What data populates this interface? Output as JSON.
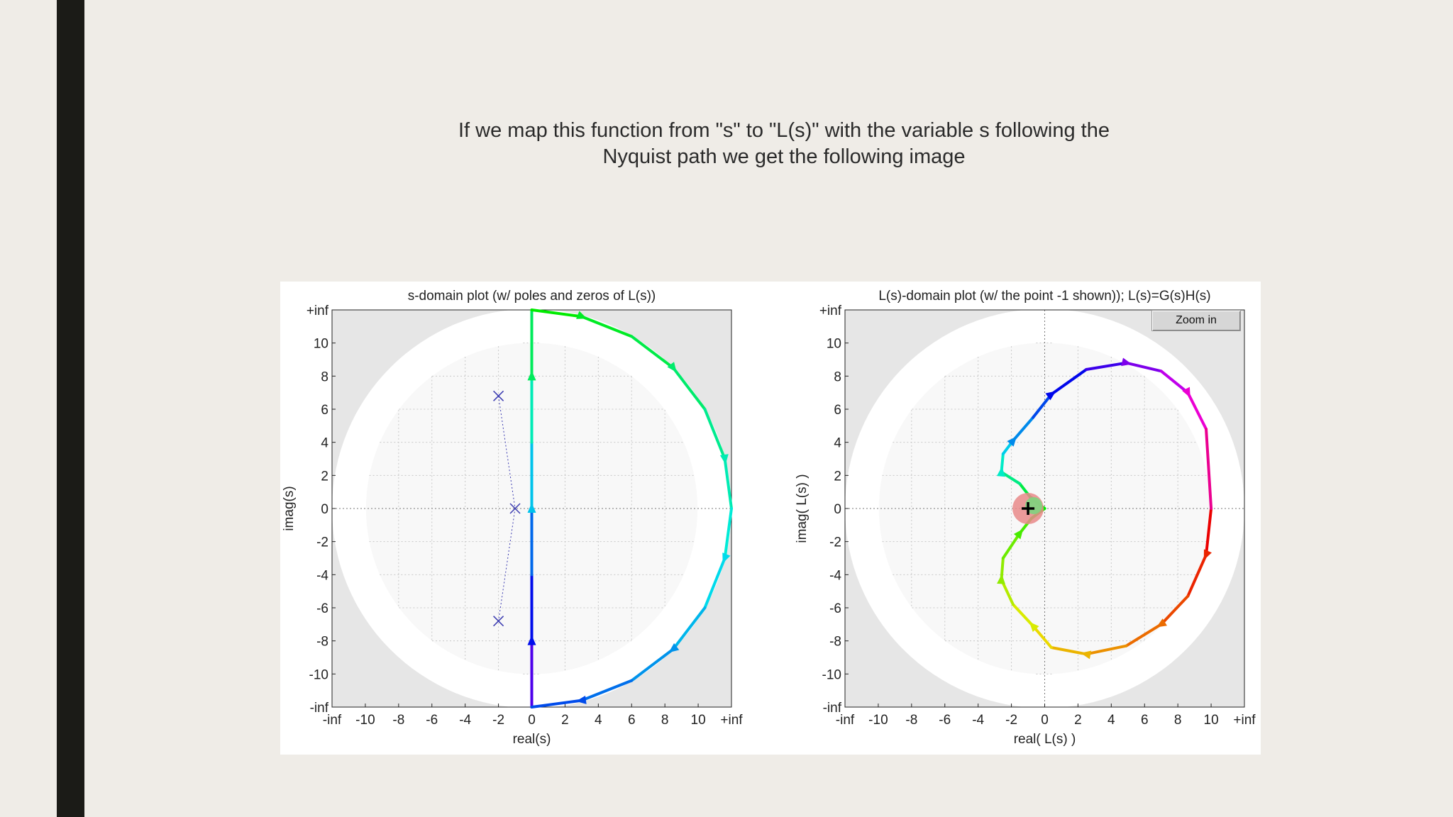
{
  "slide": {
    "caption_line1": "If we map this function from \"s\" to \"L(s)\" with the variable s following the",
    "caption_line2": "Nyquist path we get the following image",
    "bar_color": "#1b1b17",
    "background_color": "#efece7"
  },
  "zoom_button": {
    "label": "Zoom in"
  },
  "chart_data": [
    {
      "type": "line",
      "title": "s-domain plot (w/ poles and zeros of L(s))",
      "xlabel": "real(s)",
      "ylabel": "imag(s)",
      "x_ticks": [
        "-inf",
        "-10",
        "-8",
        "-6",
        "-4",
        "-2",
        "0",
        "2",
        "4",
        "6",
        "8",
        "10",
        "+inf"
      ],
      "y_ticks": [
        "+inf",
        "10",
        "8",
        "6",
        "4",
        "2",
        "0",
        "-2",
        "-4",
        "-6",
        "-8",
        "-10",
        "-inf"
      ],
      "xlim": [
        -12,
        12
      ],
      "ylim": [
        -12,
        12
      ],
      "grid": true,
      "plot_background": "#e6e6e6",
      "poles": [
        [
          -2,
          6.8
        ],
        [
          -1,
          0
        ],
        [
          -2,
          -6.8
        ]
      ],
      "series": [
        {
          "points": [
            [
              0,
              -12
            ],
            [
              0,
              -8
            ],
            [
              0,
              -4
            ],
            [
              0,
              0
            ],
            [
              0,
              4
            ],
            [
              0,
              8
            ],
            [
              0,
              12
            ]
          ]
        },
        {
          "points": [
            [
              0,
              12
            ],
            [
              3,
              11.6
            ],
            [
              6,
              10.4
            ],
            [
              8.5,
              8.5
            ],
            [
              10.4,
              6
            ],
            [
              11.6,
              3
            ],
            [
              12,
              0
            ],
            [
              11.6,
              -3
            ],
            [
              10.4,
              -6
            ],
            [
              8.5,
              -8.5
            ],
            [
              6,
              -10.4
            ],
            [
              3,
              -11.6
            ],
            [
              0,
              -12
            ]
          ]
        }
      ]
    },
    {
      "type": "line",
      "title": "L(s)-domain plot (w/ the point -1 shown)); L(s)=G(s)H(s)",
      "xlabel": "real( L(s) )",
      "ylabel": "imag( L(s) )",
      "x_ticks": [
        "-inf",
        "-10",
        "-8",
        "-6",
        "-4",
        "-2",
        "0",
        "2",
        "4",
        "6",
        "8",
        "10",
        "+inf"
      ],
      "y_ticks": [
        "+inf",
        "10",
        "8",
        "6",
        "4",
        "2",
        "0",
        "-2",
        "-4",
        "-6",
        "-8",
        "-10",
        "-inf"
      ],
      "xlim": [
        -12,
        12
      ],
      "ylim": [
        -12,
        12
      ],
      "grid": true,
      "plot_background": "#e6e6e6",
      "critical_point": [
        -1,
        0
      ],
      "series": [
        {
          "points": [
            [
              10,
              0
            ],
            [
              9.7,
              -2.8
            ],
            [
              8.6,
              -5.3
            ],
            [
              7,
              -7
            ],
            [
              4.9,
              -8.3
            ],
            [
              2.5,
              -8.8
            ],
            [
              0.4,
              -8.4
            ],
            [
              -0.7,
              -7.1
            ],
            [
              -1.9,
              -5.8
            ],
            [
              -2.6,
              -4.3
            ],
            [
              -2.5,
              -3
            ],
            [
              -1.5,
              -1.5
            ],
            [
              -0.8,
              -0.6
            ],
            [
              0,
              0
            ]
          ]
        },
        {
          "points": [
            [
              0,
              0
            ],
            [
              -0.8,
              0.6
            ],
            [
              -1.5,
              1.5
            ],
            [
              -2.6,
              2.2
            ],
            [
              -2.5,
              3.3
            ],
            [
              -1.9,
              4.1
            ],
            [
              -0.7,
              5.5
            ],
            [
              0.4,
              6.9
            ],
            [
              2.5,
              8.4
            ],
            [
              4.9,
              8.8
            ],
            [
              7,
              8.3
            ],
            [
              8.6,
              7
            ],
            [
              9.7,
              4.8
            ],
            [
              10,
              0
            ]
          ]
        }
      ]
    }
  ]
}
